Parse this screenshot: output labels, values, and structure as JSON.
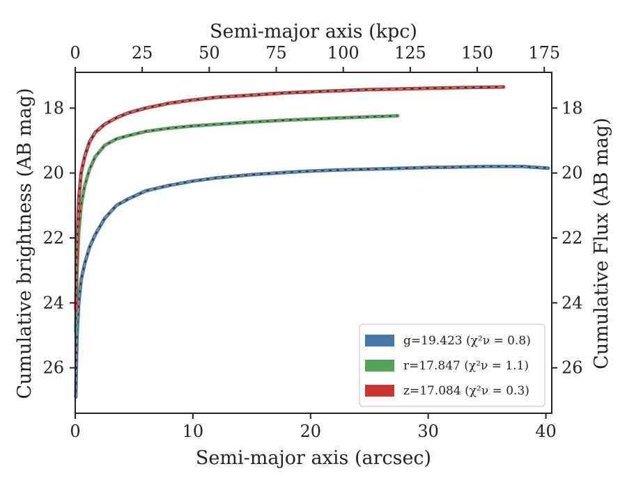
{
  "chart_data": {
    "type": "line",
    "title": "",
    "xlabel": "Semi-major axis (arcsec)",
    "x2label": "Semi-major axis (kpc)",
    "ylabel": "Cumulative brightness (AB mag)",
    "y2label": "Cumulative Flux (AB mag)",
    "xlim": [
      0,
      40.5
    ],
    "ylim": [
      27.4,
      16.9
    ],
    "y_inverted": true,
    "x2_per_x": 4.39,
    "x_ticks": [
      "0",
      "10",
      "20",
      "30",
      "40"
    ],
    "x2_ticks": [
      "0",
      "25",
      "50",
      "75",
      "100",
      "125",
      "150",
      "175"
    ],
    "y_ticks": [
      "18",
      "20",
      "22",
      "24",
      "26"
    ],
    "y2_ticks": [
      "18",
      "20",
      "22",
      "24",
      "26"
    ],
    "grid": false,
    "legend_position": "lower-right",
    "series": [
      {
        "name": "g=19.423",
        "chi": "(χ²ν = 0.8)",
        "color": "#4477aa",
        "model_style": "gray dashed",
        "x": [
          0.05,
          0.15,
          0.3,
          0.5,
          0.8,
          1.2,
          1.7,
          2.5,
          3.5,
          4.5,
          6,
          8,
          10,
          12,
          15,
          18,
          20,
          22,
          25,
          28,
          30,
          32,
          35,
          38,
          40.2
        ],
        "y": [
          26.9,
          25.0,
          24.0,
          23.3,
          22.8,
          22.3,
          21.9,
          21.4,
          21.0,
          20.8,
          20.55,
          20.38,
          20.25,
          20.15,
          20.05,
          19.98,
          19.94,
          19.91,
          19.88,
          19.85,
          19.83,
          19.82,
          19.8,
          19.8,
          19.85
        ]
      },
      {
        "name": "r=17.847",
        "chi": "(χ²ν = 1.1)",
        "color": "#55a357",
        "model_style": "gray dashed",
        "x": [
          0.05,
          0.15,
          0.3,
          0.5,
          0.8,
          1.2,
          1.7,
          2.5,
          3.5,
          4.5,
          6,
          8,
          10,
          12,
          15,
          18,
          20,
          22,
          25,
          27.4
        ],
        "y": [
          24.9,
          23.0,
          21.8,
          21.0,
          20.4,
          19.9,
          19.5,
          19.15,
          18.95,
          18.85,
          18.72,
          18.62,
          18.55,
          18.5,
          18.43,
          18.37,
          18.34,
          18.31,
          18.27,
          18.24
        ]
      },
      {
        "name": "z=17.084",
        "chi": "(χ²ν = 0.3)",
        "color": "#cc3333",
        "model_style": "gray dashed",
        "x": [
          0.05,
          0.15,
          0.3,
          0.5,
          0.8,
          1.2,
          1.7,
          2.5,
          3.5,
          4.5,
          6,
          8,
          10,
          12,
          15,
          18,
          20,
          22,
          25,
          28,
          30,
          33,
          36.4
        ],
        "y": [
          24.2,
          22.3,
          20.8,
          20.0,
          19.5,
          19.05,
          18.75,
          18.5,
          18.3,
          18.15,
          18.0,
          17.85,
          17.75,
          17.67,
          17.6,
          17.53,
          17.5,
          17.47,
          17.43,
          17.41,
          17.39,
          17.37,
          17.35
        ]
      }
    ]
  }
}
